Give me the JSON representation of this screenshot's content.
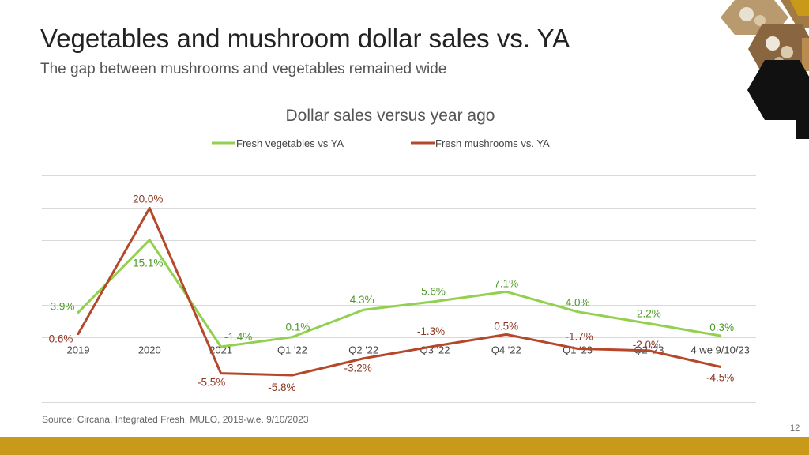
{
  "slide": {
    "title": "Vegetables and mushroom dollar sales vs. YA",
    "subtitle": "The gap between mushrooms and vegetables remained wide",
    "source": "Source: Circana, Integrated Fresh, MULO, 2019-w.e. 9/10/2023",
    "page_number": "12",
    "accent_color": "#c99a1a"
  },
  "chart_data": {
    "type": "line",
    "title": "Dollar sales versus year ago",
    "categories": [
      "2019",
      "2020",
      "2021",
      "Q1 '22",
      "Q2 '22",
      "Q3 '22",
      "Q4 '22",
      "Q1 '23",
      "Q2 '23",
      "4 we 9/10/23"
    ],
    "series": [
      {
        "name": "Fresh vegetables vs YA",
        "color": "#92d050",
        "values": [
          3.9,
          15.1,
          -1.4,
          0.1,
          4.3,
          5.6,
          7.1,
          4.0,
          2.2,
          0.3
        ],
        "labels": [
          "3.9%",
          "15.1%",
          "-1.4%",
          "0.1%",
          "4.3%",
          "5.6%",
          "7.1%",
          "4.0%",
          "2.2%",
          "0.3%"
        ]
      },
      {
        "name": "Fresh mushrooms vs. YA",
        "color": "#b5472b",
        "values": [
          0.6,
          20.0,
          -5.5,
          -5.8,
          -3.2,
          -1.3,
          0.5,
          -1.7,
          -2.0,
          -4.5
        ],
        "labels": [
          "0.6%",
          "20.0%",
          "-5.5%",
          "-5.8%",
          "-3.2%",
          "-1.3%",
          "0.5%",
          "-1.7%",
          "-2.0%",
          "-4.5%"
        ]
      }
    ],
    "legend_position": "top-center",
    "grid": true,
    "ylim": [
      -10,
      25
    ]
  }
}
